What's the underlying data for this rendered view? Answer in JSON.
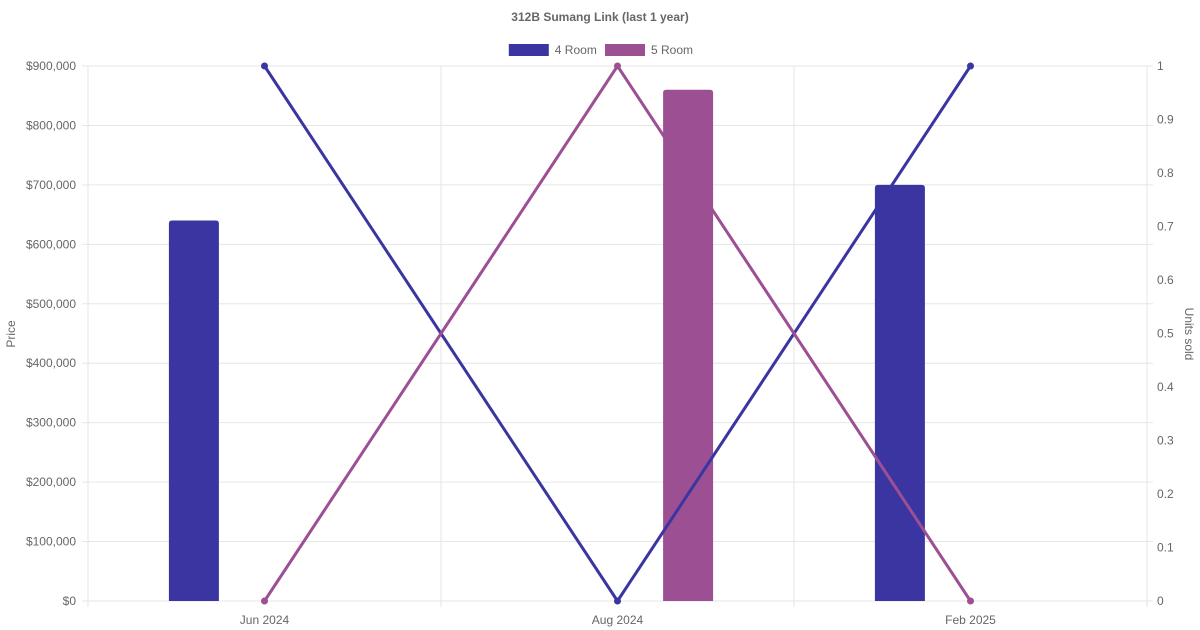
{
  "chart_data": {
    "type": "bar",
    "title": "312B Sumang Link (last 1 year)",
    "categories": [
      "Jun 2024",
      "Aug 2024",
      "Feb 2025"
    ],
    "y_left": {
      "label": "Price",
      "range": [
        0,
        900000
      ],
      "ticks": [
        "$0",
        "$100,000",
        "$200,000",
        "$300,000",
        "$400,000",
        "$500,000",
        "$600,000",
        "$700,000",
        "$800,000",
        "$900,000"
      ]
    },
    "y_right": {
      "label": "Units sold",
      "range": [
        0,
        1
      ],
      "ticks": [
        "0",
        "0.1",
        "0.2",
        "0.3",
        "0.4",
        "0.5",
        "0.6",
        "0.7",
        "0.8",
        "0.9",
        "1"
      ]
    },
    "legend": {
      "position": "top-center"
    },
    "grid": true,
    "series": [
      {
        "name": "4 Room",
        "color": "#3a35a0",
        "price": [
          640000,
          null,
          700000
        ],
        "units_sold": [
          1,
          0,
          1
        ]
      },
      {
        "name": "5 Room",
        "color": "#9c4f93",
        "price": [
          null,
          860000,
          null
        ],
        "units_sold": [
          0,
          1,
          0
        ]
      }
    ]
  }
}
